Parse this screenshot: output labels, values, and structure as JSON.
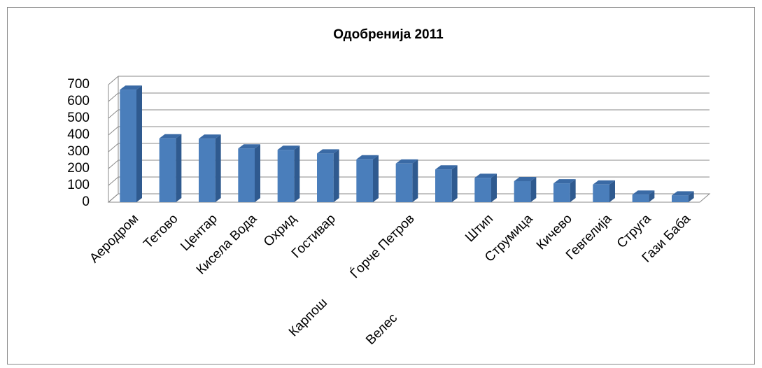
{
  "chart_data": {
    "type": "bar",
    "title": "Одобренија 2011",
    "categories": [
      "Аеродром",
      "Тетово",
      "Центар",
      "Кисела Вода",
      "Охрид",
      "Гостивар",
      "Карпош",
      "Ѓорче Петров",
      "Велес",
      "Штип",
      "Струмица",
      "Кичево",
      "Гевгелија",
      "Струга",
      "Гази Баба"
    ],
    "values": [
      670,
      380,
      378,
      320,
      312,
      290,
      255,
      230,
      195,
      145,
      125,
      112,
      105,
      45,
      40
    ],
    "color": "#4a7ebb",
    "ylim": [
      0,
      700
    ],
    "yticks": [
      0,
      100,
      200,
      300,
      400,
      500,
      600,
      700
    ],
    "grid": true
  }
}
